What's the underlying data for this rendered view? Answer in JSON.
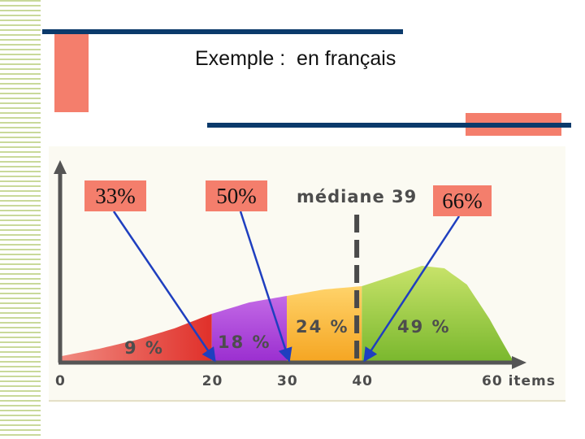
{
  "slide": {
    "title": "Exemple :  en français",
    "colors": {
      "navy_bar": "#0b3a6b",
      "accent_red": "#f47e6c",
      "stripe_green": "#c9d99a",
      "arrow_blue": "#1f3fbf"
    }
  },
  "annotations": [
    {
      "label": "33%",
      "points_to_x": 20
    },
    {
      "label": "50%",
      "points_to_x": 30
    },
    {
      "label": "66%",
      "points_to_x": 40
    }
  ],
  "chart_data": {
    "type": "area",
    "title": "",
    "xlabel": "items",
    "xlim": [
      0,
      60
    ],
    "x_ticks": [
      {
        "value": 0,
        "label": "0"
      },
      {
        "value": 20,
        "label": "20"
      },
      {
        "value": 30,
        "label": "30"
      },
      {
        "value": 40,
        "label": "40"
      },
      {
        "value": 60,
        "label": "60 items"
      }
    ],
    "segments": [
      {
        "from": 0,
        "to": 20,
        "label": "9 %",
        "share": 9,
        "color": "#e8423a"
      },
      {
        "from": 20,
        "to": 30,
        "label": "18 %",
        "share": 18,
        "color": "#a63fd6"
      },
      {
        "from": 30,
        "to": 40,
        "label": "24 %",
        "share": 24,
        "color": "#f9b93a"
      },
      {
        "from": 40,
        "to": 60,
        "label": "49 %",
        "share": 49,
        "color": "#8cc63f"
      }
    ],
    "median": {
      "value": 39,
      "label": "médiane 39"
    },
    "grid": false,
    "legend": "none"
  }
}
